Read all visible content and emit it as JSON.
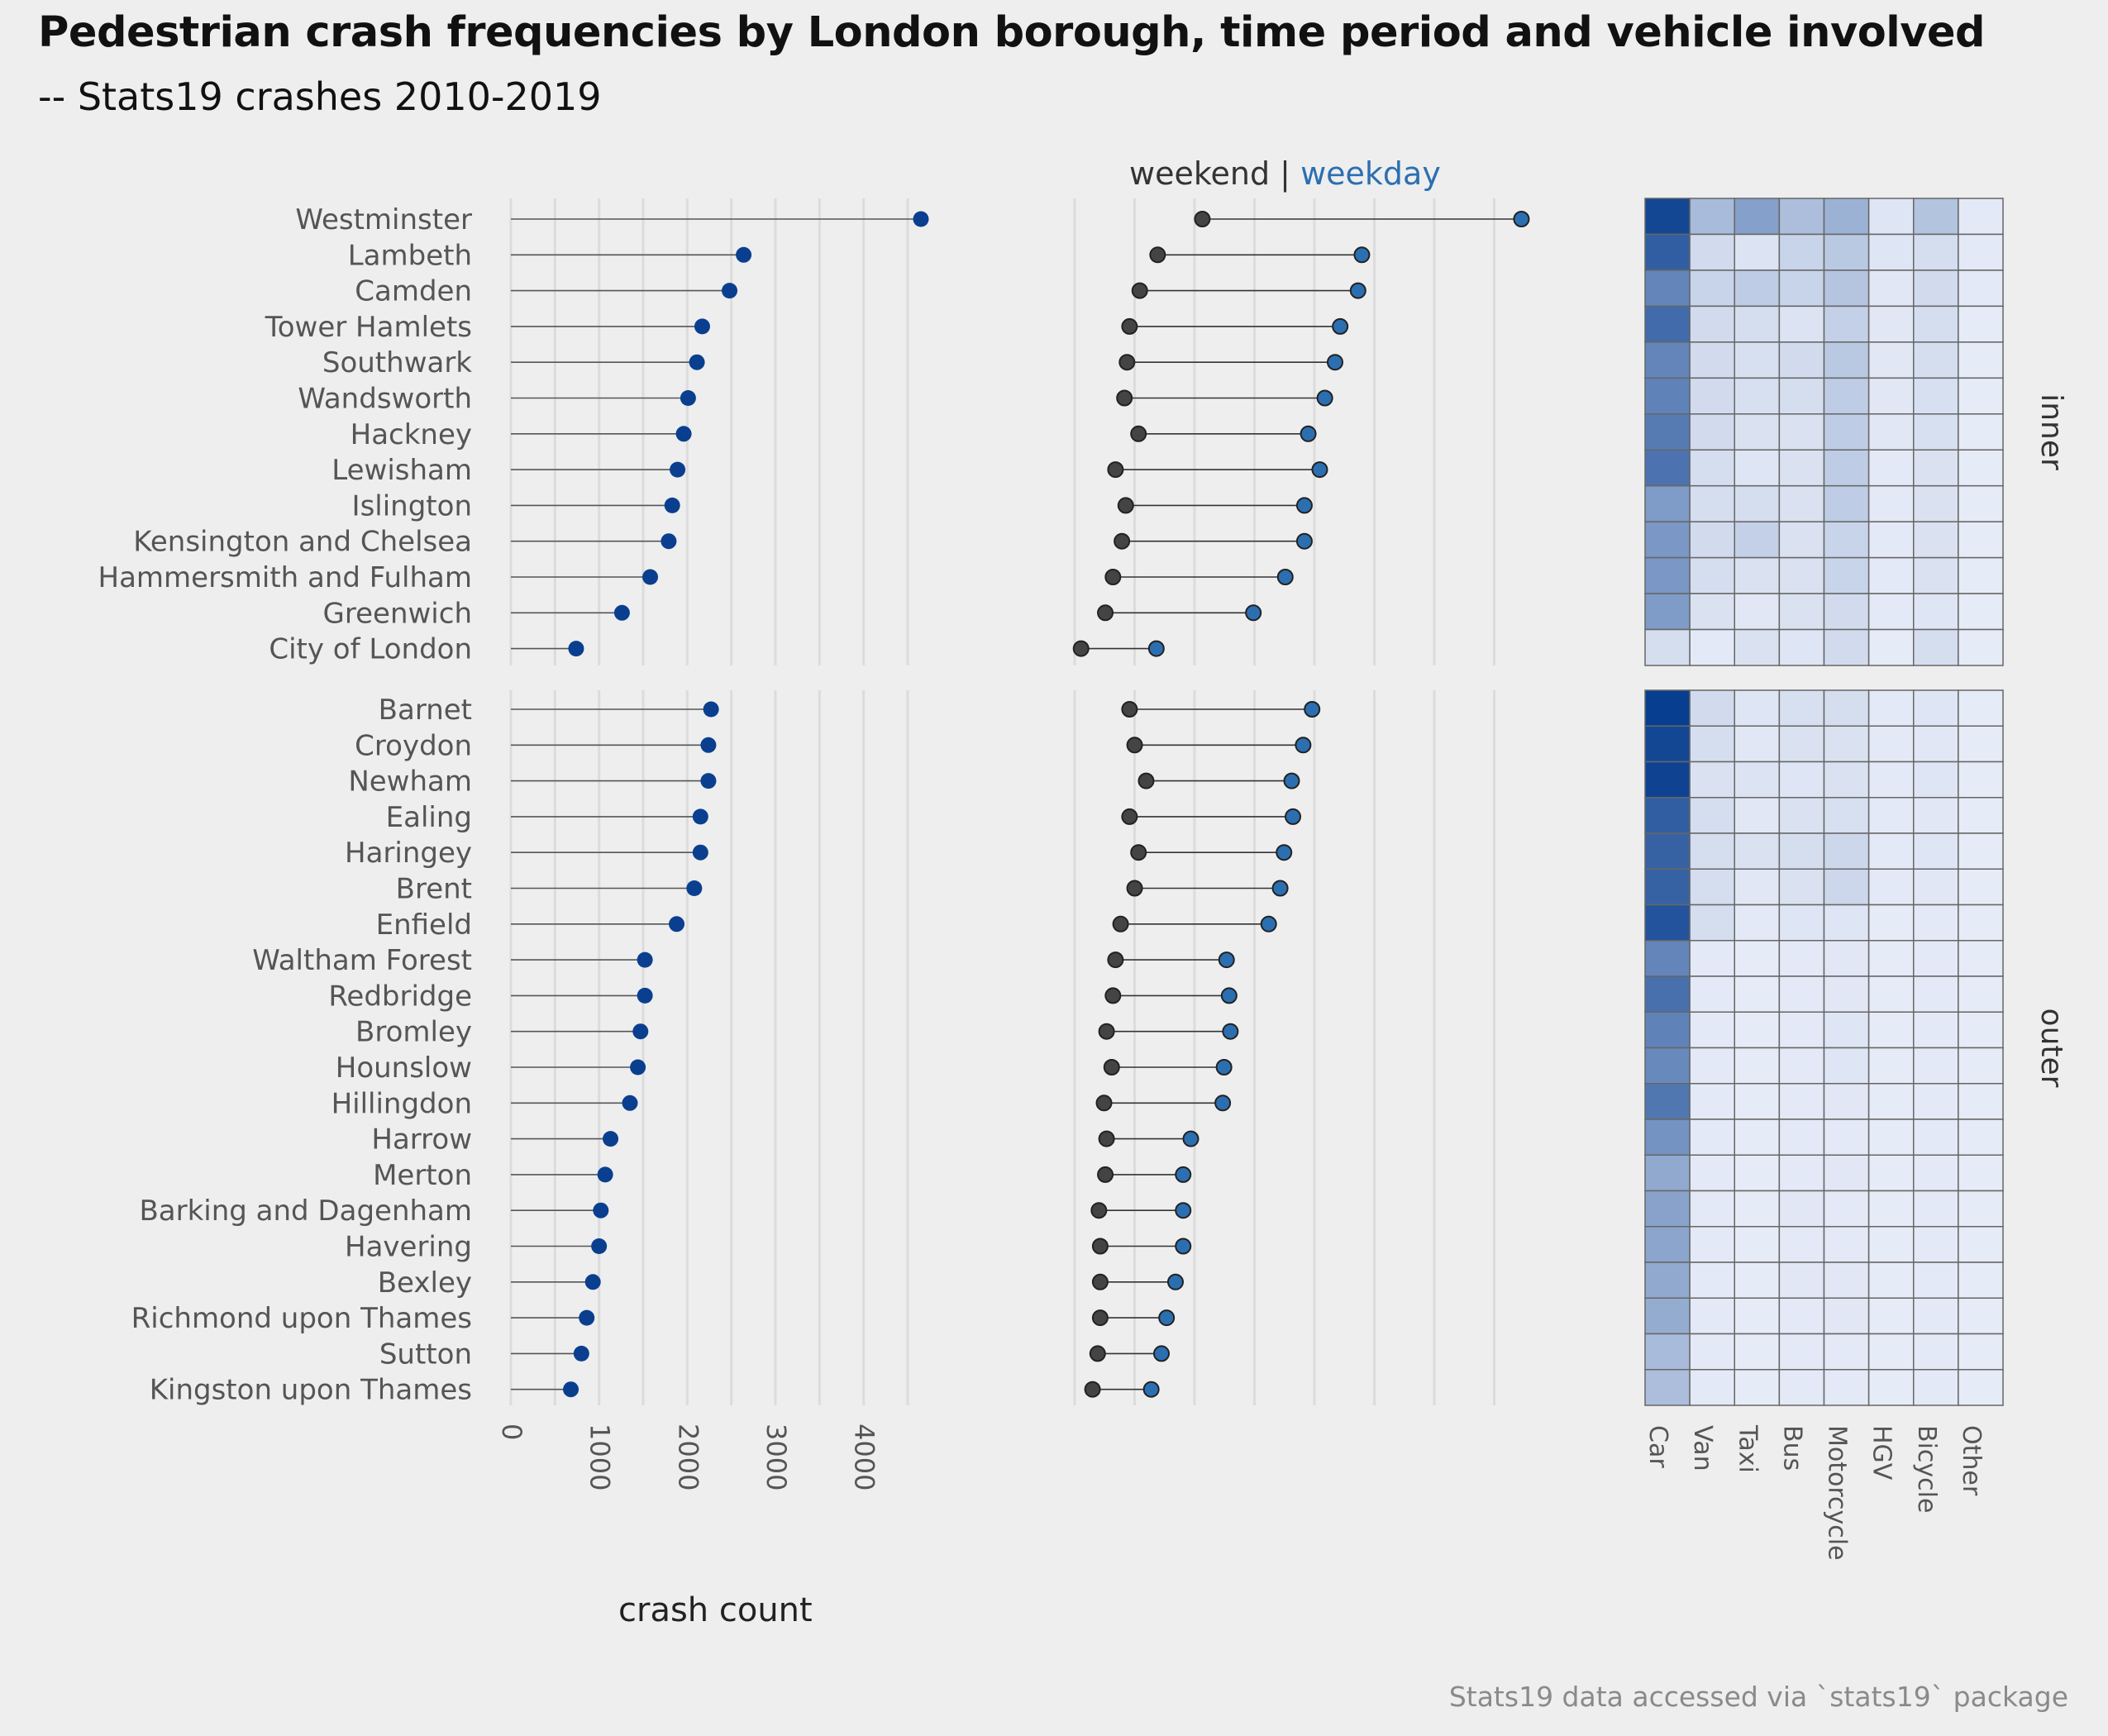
{
  "title": "Pedestrian crash frequencies by London borough, time period and vehicle involved",
  "subtitle": "-- Stats19 crashes 2010-2019",
  "caption": "Stats19 data accessed via `stats19` package",
  "legend": {
    "weekend": "weekend",
    "separator": "|",
    "weekday": "weekday"
  },
  "colors": {
    "background": "#eeeeee",
    "point_total": "#0a3f8f",
    "weekend": "#444444",
    "weekday": "#2b6fb1",
    "grid": "#dcdcdc"
  },
  "chart_data": [
    {
      "type": "lollipop",
      "xlabel": "crash count",
      "xticks": [
        0,
        1000,
        2000,
        3000,
        4000
      ],
      "xlim": [
        0,
        4800
      ],
      "facets": [
        "inner",
        "outer"
      ],
      "inner": {
        "boroughs": [
          "Westminster",
          "Lambeth",
          "Camden",
          "Tower Hamlets",
          "Southwark",
          "Wandsworth",
          "Hackney",
          "Lewisham",
          "Islington",
          "Kensington and Chelsea",
          "Hammersmith and Fulham",
          "Greenwich",
          "City of London"
        ],
        "values": [
          4650,
          2640,
          2480,
          2170,
          2110,
          2010,
          1960,
          1890,
          1830,
          1790,
          1580,
          1260,
          740
        ]
      },
      "outer": {
        "boroughs": [
          "Barnet",
          "Croydon",
          "Newham",
          "Ealing",
          "Haringey",
          "Brent",
          "Enfield",
          "Waltham Forest",
          "Redbridge",
          "Bromley",
          "Hounslow",
          "Hillingdon",
          "Harrow",
          "Merton",
          "Barking and Dagenham",
          "Havering",
          "Bexley",
          "Richmond upon Thames",
          "Sutton",
          "Kingston upon Thames"
        ],
        "values": [
          2270,
          2240,
          2240,
          2150,
          2150,
          2080,
          1880,
          1520,
          1520,
          1470,
          1440,
          1350,
          1130,
          1070,
          1020,
          1000,
          930,
          860,
          800,
          680
        ]
      }
    },
    {
      "type": "dumbbell",
      "series": [
        {
          "name": "weekend"
        },
        {
          "name": "weekday"
        }
      ],
      "xlim": [
        0,
        3400
      ],
      "inner": {
        "weekend": [
          1000,
          650,
          510,
          430,
          410,
          390,
          500,
          320,
          400,
          370,
          300,
          240,
          50
        ],
        "weekday": [
          3500,
          2250,
          2220,
          2080,
          2040,
          1960,
          1830,
          1920,
          1800,
          1800,
          1650,
          1400,
          640
        ]
      },
      "outer": {
        "weekend": [
          430,
          470,
          560,
          430,
          500,
          470,
          360,
          320,
          300,
          250,
          290,
          230,
          250,
          240,
          190,
          200,
          200,
          200,
          180,
          140
        ],
        "weekday": [
          1860,
          1790,
          1700,
          1710,
          1640,
          1610,
          1520,
          1190,
          1210,
          1220,
          1170,
          1160,
          910,
          850,
          850,
          850,
          790,
          720,
          680,
          600
        ]
      }
    },
    {
      "type": "heatmap",
      "columns": [
        "Car",
        "Van",
        "Taxi",
        "Bus",
        "Motorcycle",
        "HGV",
        "Bicycle",
        "Other"
      ],
      "inner": [
        [
          0.95,
          0.3,
          0.45,
          0.28,
          0.35,
          0.06,
          0.25,
          0.04
        ],
        [
          0.82,
          0.12,
          0.07,
          0.16,
          0.22,
          0.06,
          0.1,
          0.04
        ],
        [
          0.6,
          0.16,
          0.2,
          0.16,
          0.24,
          0.05,
          0.12,
          0.04
        ],
        [
          0.75,
          0.12,
          0.1,
          0.07,
          0.18,
          0.05,
          0.1,
          0.03
        ],
        [
          0.6,
          0.12,
          0.09,
          0.12,
          0.22,
          0.05,
          0.1,
          0.03
        ],
        [
          0.62,
          0.12,
          0.09,
          0.1,
          0.2,
          0.05,
          0.09,
          0.03
        ],
        [
          0.66,
          0.12,
          0.08,
          0.08,
          0.2,
          0.05,
          0.09,
          0.03
        ],
        [
          0.7,
          0.1,
          0.06,
          0.08,
          0.2,
          0.04,
          0.08,
          0.03
        ],
        [
          0.48,
          0.1,
          0.1,
          0.08,
          0.2,
          0.04,
          0.08,
          0.03
        ],
        [
          0.5,
          0.12,
          0.18,
          0.08,
          0.16,
          0.04,
          0.08,
          0.03
        ],
        [
          0.5,
          0.1,
          0.08,
          0.08,
          0.16,
          0.04,
          0.08,
          0.03
        ],
        [
          0.48,
          0.08,
          0.05,
          0.08,
          0.12,
          0.04,
          0.06,
          0.03
        ],
        [
          0.1,
          0.04,
          0.08,
          0.06,
          0.12,
          0.03,
          0.1,
          0.03
        ]
      ],
      "outer": [
        [
          1.0,
          0.12,
          0.06,
          0.09,
          0.1,
          0.04,
          0.06,
          0.03
        ],
        [
          0.95,
          0.1,
          0.05,
          0.08,
          0.08,
          0.04,
          0.05,
          0.03
        ],
        [
          0.97,
          0.08,
          0.07,
          0.06,
          0.08,
          0.04,
          0.06,
          0.03
        ],
        [
          0.82,
          0.1,
          0.05,
          0.08,
          0.09,
          0.04,
          0.05,
          0.03
        ],
        [
          0.8,
          0.1,
          0.08,
          0.1,
          0.14,
          0.04,
          0.06,
          0.03
        ],
        [
          0.8,
          0.1,
          0.05,
          0.08,
          0.14,
          0.04,
          0.05,
          0.03
        ],
        [
          0.88,
          0.1,
          0.04,
          0.06,
          0.06,
          0.03,
          0.04,
          0.03
        ],
        [
          0.6,
          0.04,
          0.03,
          0.04,
          0.05,
          0.03,
          0.04,
          0.03
        ],
        [
          0.72,
          0.04,
          0.03,
          0.04,
          0.05,
          0.03,
          0.04,
          0.03
        ],
        [
          0.62,
          0.04,
          0.03,
          0.04,
          0.06,
          0.03,
          0.04,
          0.03
        ],
        [
          0.58,
          0.04,
          0.03,
          0.04,
          0.06,
          0.03,
          0.04,
          0.03
        ],
        [
          0.68,
          0.04,
          0.03,
          0.04,
          0.05,
          0.03,
          0.04,
          0.03
        ],
        [
          0.52,
          0.04,
          0.03,
          0.04,
          0.04,
          0.03,
          0.04,
          0.03
        ],
        [
          0.4,
          0.04,
          0.03,
          0.04,
          0.05,
          0.03,
          0.04,
          0.03
        ],
        [
          0.44,
          0.04,
          0.03,
          0.05,
          0.04,
          0.03,
          0.04,
          0.03
        ],
        [
          0.42,
          0.04,
          0.03,
          0.04,
          0.04,
          0.03,
          0.04,
          0.03
        ],
        [
          0.4,
          0.04,
          0.03,
          0.05,
          0.05,
          0.03,
          0.04,
          0.03
        ],
        [
          0.38,
          0.04,
          0.03,
          0.04,
          0.05,
          0.03,
          0.04,
          0.03
        ],
        [
          0.3,
          0.04,
          0.03,
          0.04,
          0.04,
          0.03,
          0.04,
          0.03
        ],
        [
          0.28,
          0.04,
          0.03,
          0.04,
          0.04,
          0.03,
          0.04,
          0.03
        ]
      ]
    }
  ]
}
